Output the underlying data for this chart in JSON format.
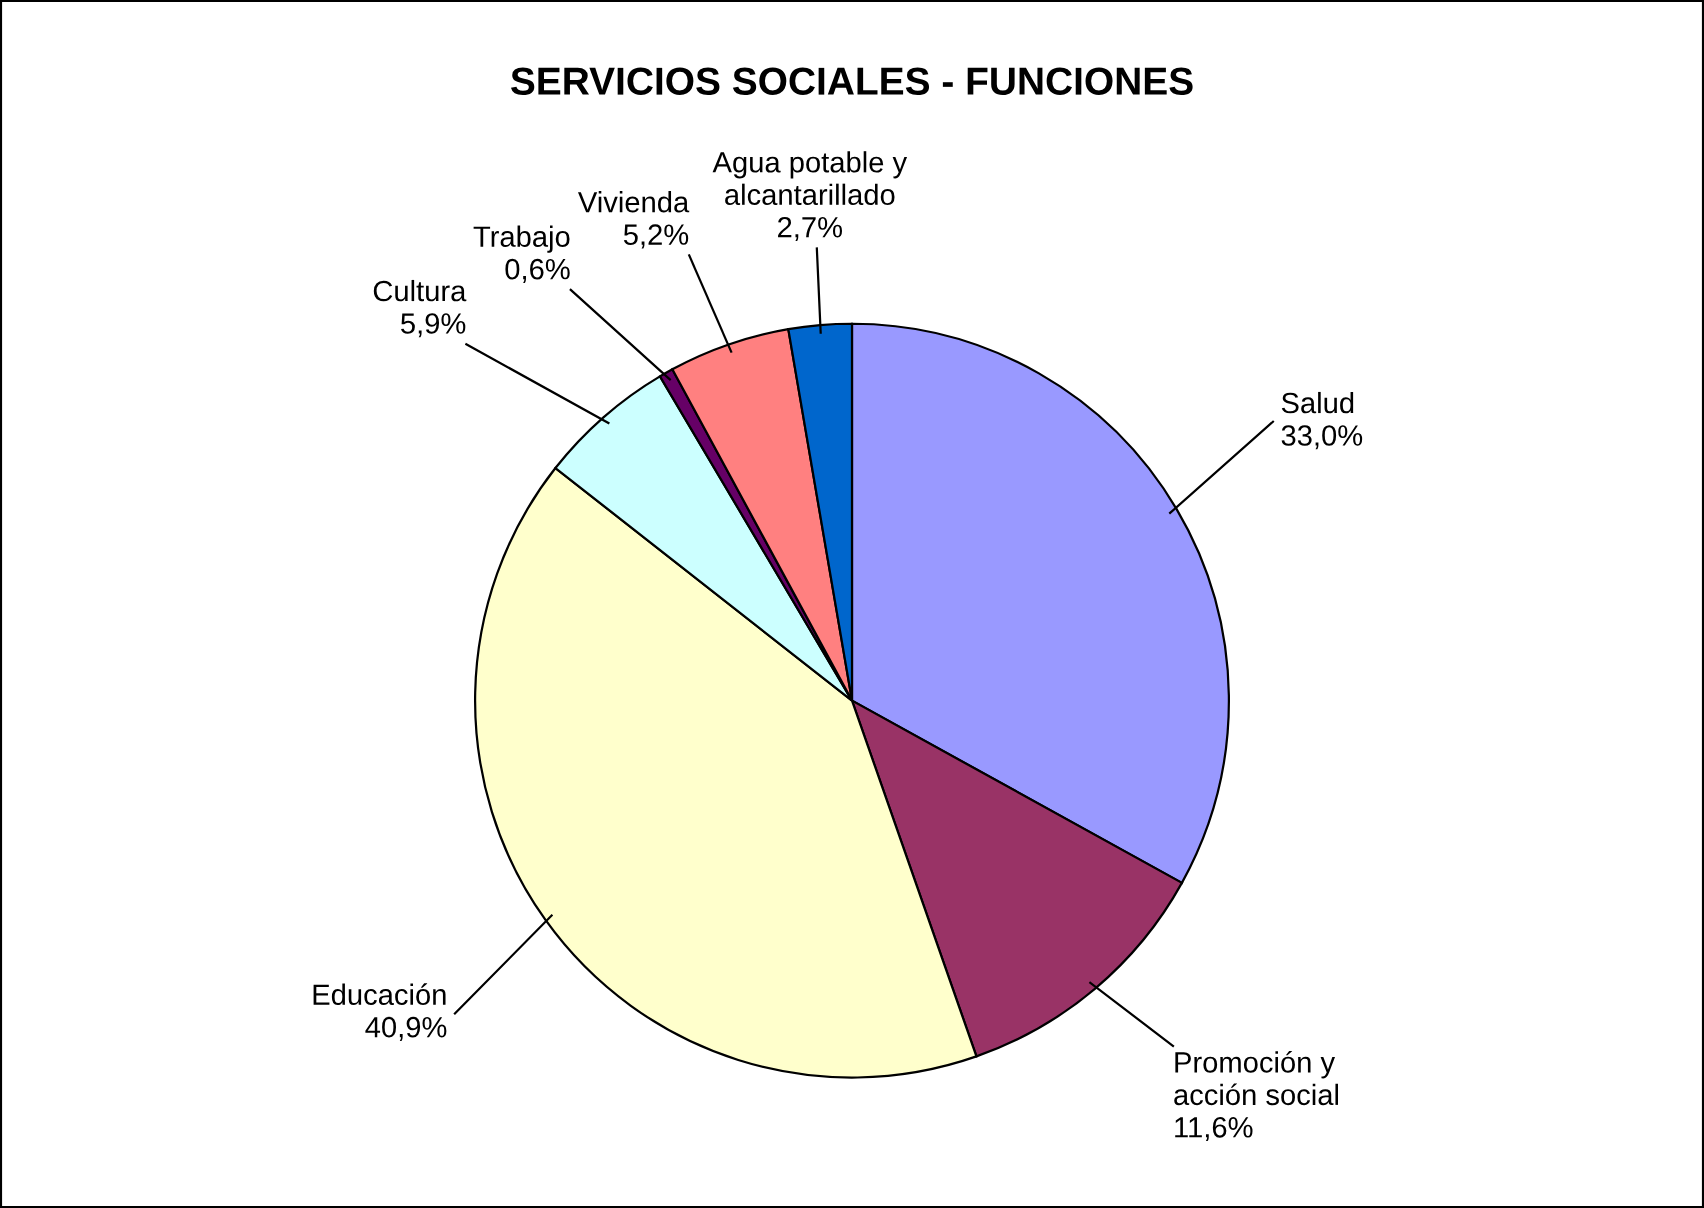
{
  "chart_data": {
    "type": "pie",
    "title": "SERVICIOS SOCIALES - FUNCIONES",
    "categories": [
      "Salud",
      "Promoción y acción social",
      "Educación",
      "Cultura",
      "Trabajo",
      "Vivienda",
      "Agua potable y alcantarillado"
    ],
    "values": [
      33.0,
      11.6,
      40.9,
      5.9,
      0.6,
      5.2,
      2.7
    ],
    "colors": [
      "#9999ff",
      "#993366",
      "#ffffcc",
      "#ccffff",
      "#660066",
      "#ff8080",
      "#0066cc"
    ],
    "value_labels": [
      "33,0%",
      "11,6%",
      "40,9%",
      "5,9%",
      "0,6%",
      "5,2%",
      "2,7%"
    ]
  }
}
